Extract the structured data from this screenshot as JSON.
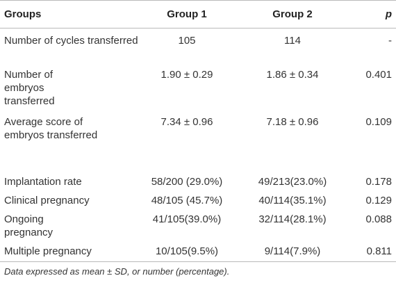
{
  "table": {
    "headers": [
      "Groups",
      "Group 1",
      "Group 2",
      "p"
    ],
    "rows": [
      [
        "Number of cycles transferred",
        "105",
        "114",
        "-"
      ],
      [
        "Number of embryos transferred",
        "1.90 ± 0.29",
        "1.86 ± 0.34",
        "0.401"
      ],
      [
        "Average score of embryos transferred",
        "7.34 ± 0.96",
        "7.18 ± 0.96",
        "0.109"
      ],
      [
        "Implantation rate",
        "58/200 (29.0%)",
        "49/213(23.0%)",
        "0.178"
      ],
      [
        "Clinical pregnancy",
        "48/105 (45.7%)",
        "40/114(35.1%)",
        "0.129"
      ],
      [
        "Ongoing pregnancy",
        "41/105(39.0%)",
        "32/114(28.1%)",
        "0.088"
      ],
      [
        "Multiple pregnancy",
        "10/105(9.5%)",
        "9/114(7.9%)",
        "0.811"
      ]
    ]
  },
  "footnote": "Data expressed as mean ± SD, or number (percentage)."
}
